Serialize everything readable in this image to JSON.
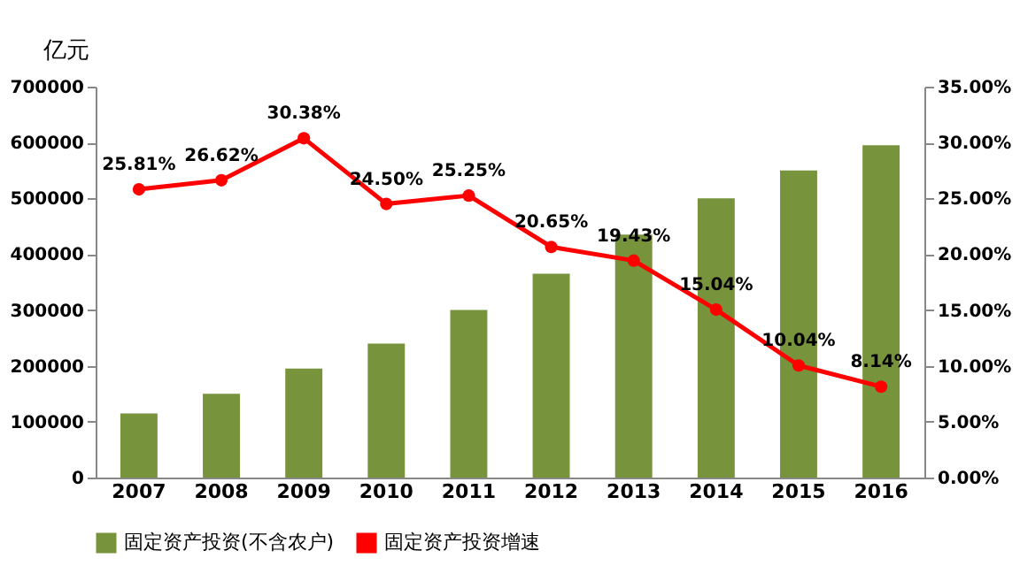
{
  "chart_data": {
    "type": "bar",
    "ylabel": "亿元",
    "categories": [
      "2007",
      "2008",
      "2009",
      "2010",
      "2011",
      "2012",
      "2013",
      "2014",
      "2015",
      "2016"
    ],
    "series": [
      {
        "name": "固定资产投资(不含农户)",
        "color": "#77933c",
        "values": [
          115000,
          150000,
          195000,
          240000,
          300000,
          365000,
          435000,
          500000,
          550000,
          595000
        ]
      },
      {
        "name": "固定资产投资增速",
        "type": "line",
        "axis": "y2",
        "color": "#ff0000",
        "marker": "circle",
        "values": [
          25.81,
          26.62,
          30.38,
          24.5,
          25.25,
          20.65,
          19.43,
          15.04,
          10.04,
          8.14
        ],
        "value_labels": [
          "25.81%",
          "26.62%",
          "30.38%",
          "24.50%",
          "25.25%",
          "20.65%",
          "19.43%",
          "15.04%",
          "10.04%",
          "8.14%"
        ]
      }
    ],
    "ylim": [
      0,
      700000
    ],
    "yticks": [
      0,
      100000,
      200000,
      300000,
      400000,
      500000,
      600000,
      700000
    ],
    "y2lim": [
      0,
      35
    ],
    "y2ticks": [
      {
        "value": 0,
        "label": "0.00%"
      },
      {
        "value": 5,
        "label": "5.00%"
      },
      {
        "value": 10,
        "label": "10.00%"
      },
      {
        "value": 15,
        "label": "15.00%"
      },
      {
        "value": 20,
        "label": "20.00%"
      },
      {
        "value": 25,
        "label": "25.00%"
      },
      {
        "value": 30,
        "label": "30.00%"
      },
      {
        "value": 35,
        "label": "35.00%"
      }
    ],
    "legend": "bottom",
    "grid": false
  }
}
